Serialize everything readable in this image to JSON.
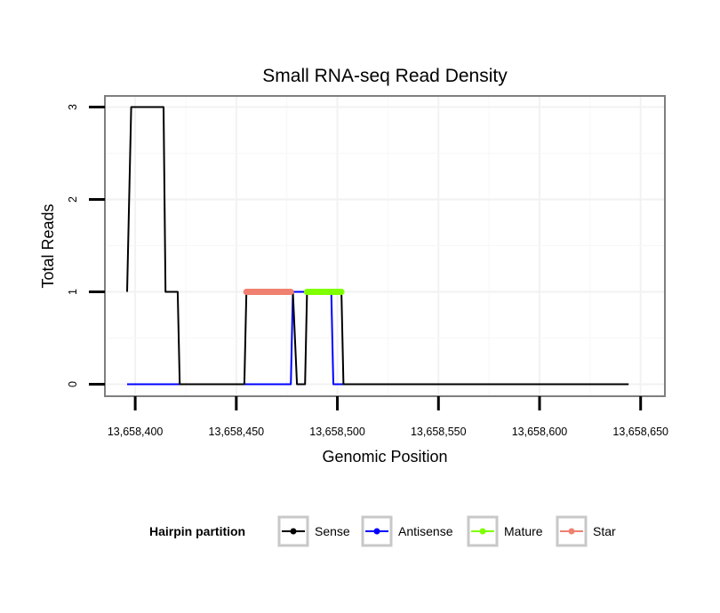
{
  "chart_data": {
    "type": "line",
    "title": "Small RNA-seq Read Density",
    "xlabel": "Genomic Position",
    "ylabel": "Total Reads",
    "xlim": [
      13658385,
      13658662
    ],
    "ylim": [
      -0.13,
      3.12
    ],
    "grid": true,
    "x_ticks": [
      13658400,
      13658450,
      13658500,
      13658550,
      13658600,
      13658650
    ],
    "x_tick_labels": [
      "13,658,400",
      "13,658,450",
      "13,658,500",
      "13,658,550",
      "13,658,600",
      "13,658,650"
    ],
    "y_ticks": [
      0,
      1,
      2,
      3
    ],
    "y_tick_labels": [
      "0",
      "1",
      "2",
      "3"
    ],
    "legend_title": "Hairpin partition",
    "legend_position": "bottom",
    "series": [
      {
        "name": "Sense",
        "color": "#000000",
        "x": [
          13658396,
          13658396,
          13658398,
          13658414,
          13658415,
          13658421,
          13658422,
          13658454,
          13658455,
          13658478,
          13658480,
          13658484,
          13658485,
          13658502,
          13658503,
          13658644
        ],
        "y": [
          1,
          1,
          3,
          3,
          1,
          1,
          0,
          0,
          1,
          1,
          0,
          0,
          1,
          1,
          0,
          0
        ]
      },
      {
        "name": "Antisense",
        "color": "#0000ff",
        "x": [
          13658396,
          13658477,
          13658478,
          13658497,
          13658498,
          13658644
        ],
        "y": [
          0,
          0,
          1,
          1,
          0,
          0
        ]
      },
      {
        "name": "Mature",
        "color": "#7fff00",
        "x": [
          13658485,
          13658502
        ],
        "y": [
          1,
          1
        ]
      },
      {
        "name": "Star",
        "color": "#f08070",
        "x": [
          13658455,
          13658477
        ],
        "y": [
          1,
          1
        ]
      }
    ]
  }
}
